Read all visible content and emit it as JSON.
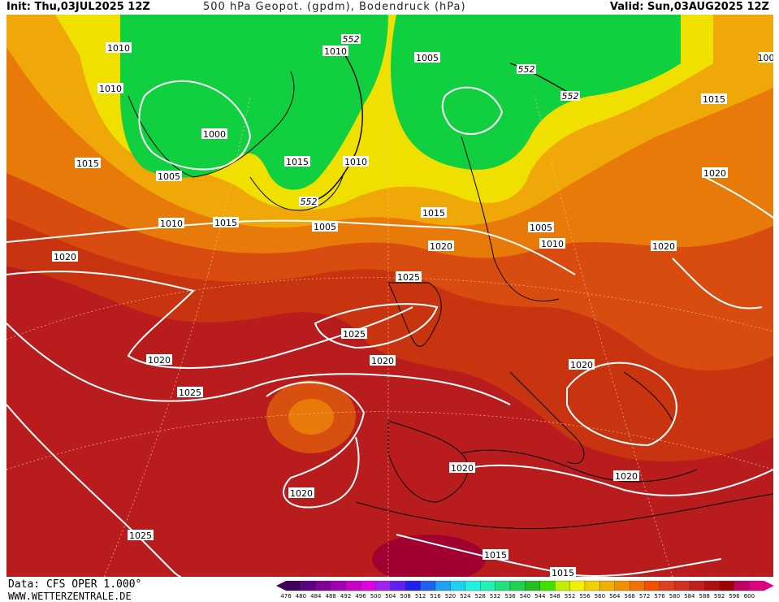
{
  "header": {
    "init": "Init: Thu,03JUL2025 12Z",
    "title": "500 hPa Geopot. (gpdm), Bodendruck (hPa)",
    "valid": "Valid: Sun,03AUG2025 12Z"
  },
  "footer": {
    "data_source": "Data: CFS OPER 1.000°",
    "website": "WWW.WETTERZENTRALE.DE"
  },
  "map": {
    "isobar_labels": [
      "1010",
      "1010",
      "1010",
      "1000",
      "1005",
      "1015",
      "1015",
      "1005",
      "1010",
      "1015",
      "1015",
      "1010",
      "1005",
      "1020",
      "1025",
      "1025",
      "1020",
      "1020",
      "1025",
      "1020",
      "1020",
      "1015",
      "1020",
      "1020",
      "1020",
      "1015",
      "1015",
      "1025",
      "1015",
      "1005",
      "1010",
      "1020",
      "552",
      "552",
      "552",
      "552",
      "1005",
      "100"
    ],
    "colors": {
      "low": "#00d040",
      "yellow_green": "#b8f000",
      "yellow": "#f0f000",
      "orange": "#f0a000",
      "dark_orange": "#e06010",
      "red": "#c83000",
      "dark_red": "#b01818",
      "crimson": "#a00030"
    }
  },
  "legend": {
    "values": [
      "476",
      "480",
      "484",
      "488",
      "492",
      "496",
      "500",
      "504",
      "508",
      "512",
      "516",
      "520",
      "524",
      "528",
      "532",
      "536",
      "540",
      "544",
      "548",
      "552",
      "556",
      "560",
      "564",
      "568",
      "572",
      "576",
      "580",
      "584",
      "588",
      "592",
      "596",
      "600"
    ],
    "colors": [
      "#40005a",
      "#5a0080",
      "#800098",
      "#a000b4",
      "#c800c8",
      "#e000e0",
      "#a020f0",
      "#6020f0",
      "#2020f0",
      "#2060f0",
      "#20a0f0",
      "#20d0f0",
      "#20f0e0",
      "#20f0b0",
      "#20e080",
      "#20d050",
      "#20c020",
      "#40e000",
      "#c0f000",
      "#f0f000",
      "#f0d000",
      "#f0b000",
      "#f09000",
      "#f07000",
      "#f05000",
      "#e04020",
      "#d03020",
      "#c02020",
      "#b01010",
      "#a00000",
      "#c00060",
      "#e00080"
    ]
  }
}
